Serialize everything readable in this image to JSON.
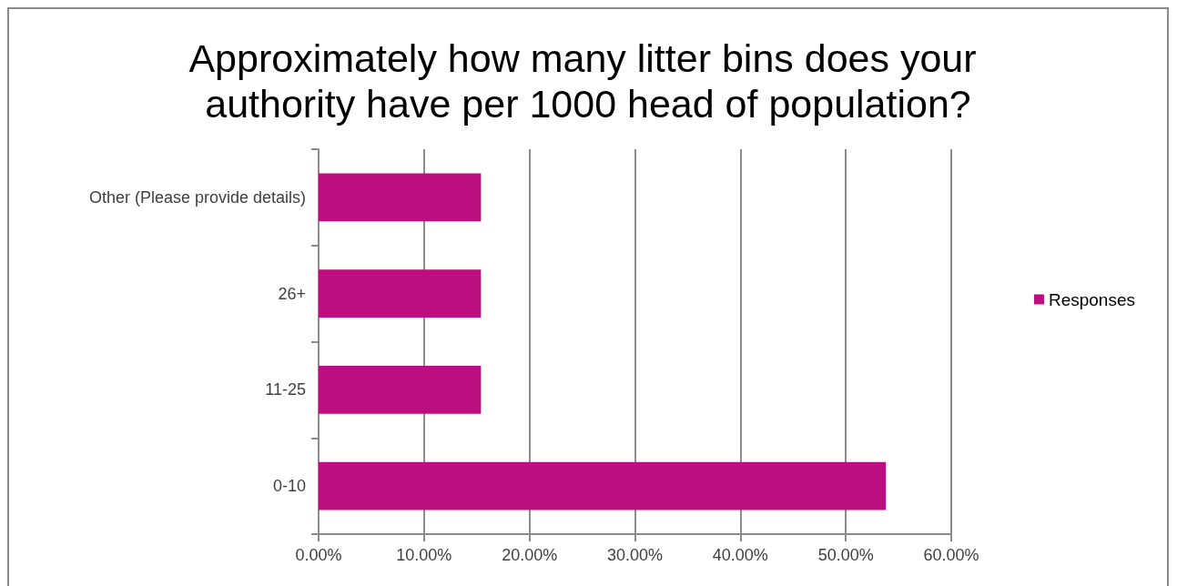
{
  "chart_data": {
    "type": "bar",
    "orientation": "horizontal",
    "title": "Approximately how many litter bins does your authority have per 1000 head of population?",
    "categories": [
      "Other (Please provide details)",
      "26+",
      "11-25",
      "0-10"
    ],
    "series": [
      {
        "name": "Responses",
        "color": "#bc0e7e",
        "values": [
          15.4,
          15.4,
          15.4,
          53.8
        ]
      }
    ],
    "xlim": [
      0,
      60
    ],
    "xticks": [
      {
        "value": 0,
        "label": "0.00%"
      },
      {
        "value": 10,
        "label": "10.00%"
      },
      {
        "value": 20,
        "label": "20.00%"
      },
      {
        "value": 30,
        "label": "30.00%"
      },
      {
        "value": 40,
        "label": "40.00%"
      },
      {
        "value": 50,
        "label": "50.00%"
      },
      {
        "value": 60,
        "label": "60.00%"
      }
    ],
    "grid": "x",
    "legend": "right"
  }
}
